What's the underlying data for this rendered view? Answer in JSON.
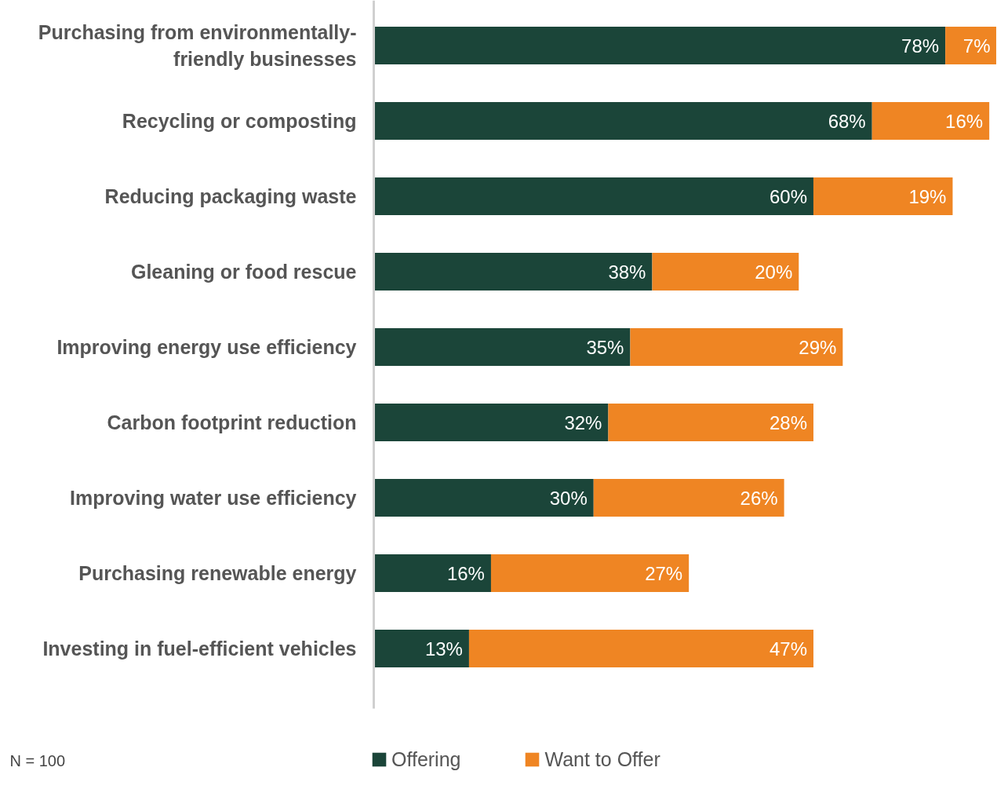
{
  "chart_data": {
    "type": "bar",
    "orientation": "horizontal",
    "stacked": true,
    "legend": "bottom",
    "grid": false,
    "categories": [
      "Purchasing from environmentally-friendly businesses",
      "Recycling or composting",
      "Reducing packaging waste",
      "Gleaning or food rescue",
      "Improving energy use efficiency",
      "Carbon footprint reduction",
      "Improving water use efficiency",
      "Purchasing renewable energy",
      "Investing in fuel-efficient vehicles"
    ],
    "series": [
      {
        "name": "Offering",
        "color": "#1b4539",
        "values": [
          78,
          68,
          60,
          38,
          35,
          32,
          30,
          16,
          13
        ],
        "value_labels": [
          "78%",
          "68%",
          "60%",
          "38%",
          "35%",
          "32%",
          "30%",
          "16%",
          "13%"
        ]
      },
      {
        "name": "Want to Offer",
        "color": "#ef8523",
        "values": [
          7,
          16,
          19,
          20,
          29,
          28,
          26,
          27,
          47
        ],
        "value_labels": [
          "7%",
          "16%",
          "19%",
          "20%",
          "29%",
          "28%",
          "26%",
          "27%",
          "47%"
        ]
      }
    ],
    "annotations": [
      "N = 100"
    ]
  }
}
